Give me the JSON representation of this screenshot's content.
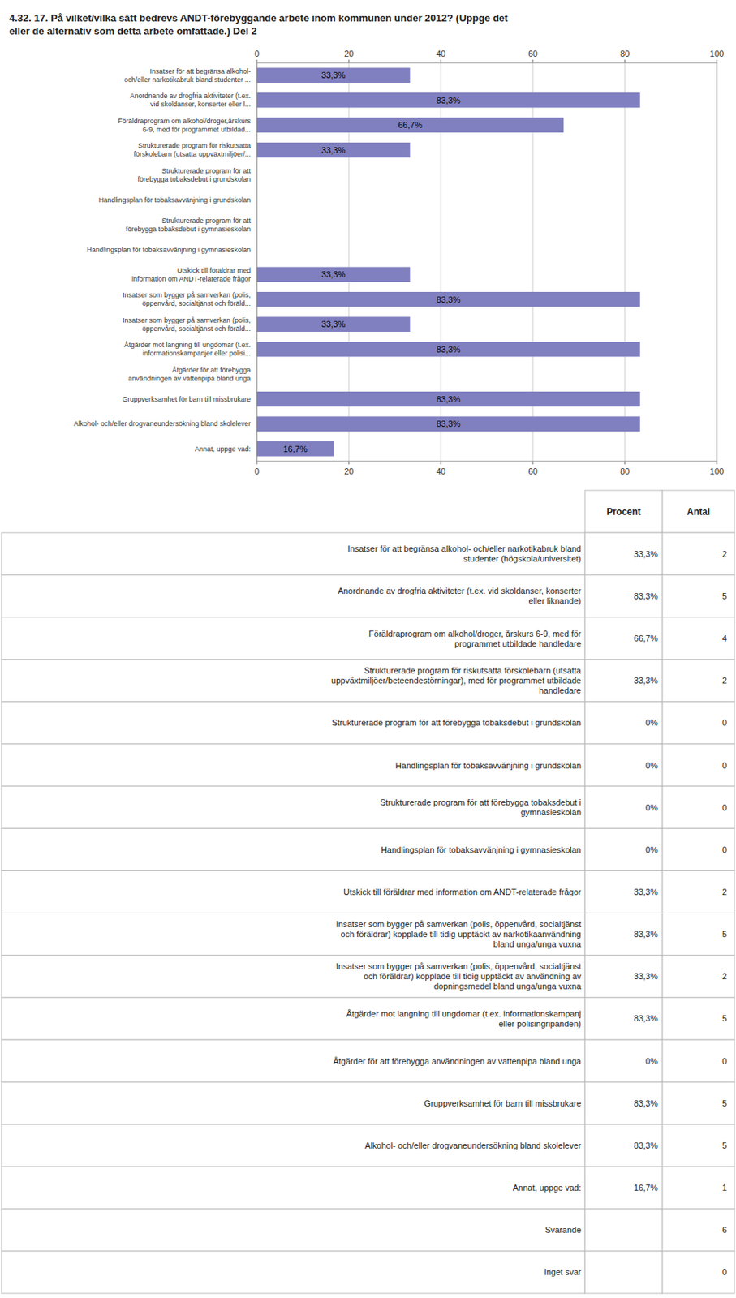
{
  "chart_data": {
    "type": "bar",
    "orientation": "horizontal",
    "title": "4.32. 17. På vilket/vilka sätt bedrevs ANDT-förebyggande arbete inom kommunen under 2012? (Uppge det\neller de alternativ som detta arbete omfattade.) Del 2",
    "categories": [
      "Insatser för att begränsa alkohol-\noch/eller narkotikabruk bland studenter ...",
      "Anordnande av drogfria aktiviteter (t.ex.\nvid skoldanser, konserter eller l...",
      "Föräldraprogram om alkohol/droger,årskurs\n6-9, med för programmet utbildad...",
      "Strukturerade program för riskutsatta\nförskolebarn (utsatta uppväxtmiljöer/...",
      "Strukturerade program för att\nförebygga tobaksdebut i grundskolan",
      "Handlingsplan för tobaksavvänjning i grundskolan",
      "Strukturerade program för att\nförebygga tobaksdebut i gymnasieskolan",
      "Handlingsplan för tobaksavvänjning i gymnasieskolan",
      "Utskick till föräldrar med\ninformation om ANDT-relaterade frågor",
      "Insatser som bygger på samverkan (polis,\nöppenvård, socialtjänst och föräld...",
      "Insatser som bygger på samverkan (polis,\nöppenvård, socialtjänst och föräld...",
      "Åtgärder mot langning till ungdomar (t.ex.\ninformationskampanjer eller polisi...",
      "Åtgärder för att förebygga\nanvändningen av vattenpipa bland unga",
      "Gruppverksamhet för barn till missbrukare",
      "Alkohol- och/eller drogvaneundersökning bland skolelever",
      "Annat, uppge vad:"
    ],
    "values": [
      33.3,
      83.3,
      66.7,
      33.3,
      0.0,
      0.0,
      0.0,
      0.0,
      33.3,
      83.3,
      33.3,
      83.3,
      0.0,
      83.3,
      83.3,
      16.7
    ],
    "value_labels": [
      "33,3%",
      "83,3%",
      "66,7%",
      "33,3%",
      null,
      null,
      null,
      null,
      "33,3%",
      "83,3%",
      "33,3%",
      "83,3%",
      null,
      "83,3%",
      "83,3%",
      "16,7%"
    ],
    "data_labels": true,
    "color": "#8080c0",
    "xlim": [
      0,
      100
    ],
    "xticks": [
      0,
      20,
      40,
      60,
      80,
      100
    ],
    "grid": true,
    "table": {
      "headers": [
        "Procent",
        "Antal"
      ],
      "rows": [
        {
          "label": "Insatser för att begränsa alkohol- och/eller narkotikabruk bland\nstudenter (högskola/universitet)",
          "percent": 33.3,
          "percent_label": "33,3%",
          "count": 2
        },
        {
          "label": "Anordnande av drogfria aktiviteter (t.ex. vid skoldanser, konserter\neller liknande)",
          "percent": 83.3,
          "percent_label": "83,3%",
          "count": 5
        },
        {
          "label": "Föräldraprogram om alkohol/droger, årskurs 6-9, med för\nprogrammet utbildade handledare",
          "percent": 66.7,
          "percent_label": "66,7%",
          "count": 4
        },
        {
          "label": "Strukturerade program för riskutsatta förskolebarn (utsatta\nuppväxtmiljöer/beteendestörningar), med för programmet utbildade\nhandledare",
          "percent": 33.3,
          "percent_label": "33,3%",
          "count": 2
        },
        {
          "label": "Strukturerade program för att förebygga tobaksdebut i grundskolan",
          "percent": 0,
          "percent_label": "0%",
          "count": 0
        },
        {
          "label": "Handlingsplan för tobaksavvänjning i grundskolan",
          "percent": 0,
          "percent_label": "0%",
          "count": 0
        },
        {
          "label": "Strukturerade program för att förebygga tobaksdebut i\ngymnasieskolan",
          "percent": 0,
          "percent_label": "0%",
          "count": 0
        },
        {
          "label": "Handlingsplan för tobaksavvänjning i gymnasieskolan",
          "percent": 0,
          "percent_label": "0%",
          "count": 0
        },
        {
          "label": "Utskick till föräldrar med information om ANDT-relaterade frågor",
          "percent": 33.3,
          "percent_label": "33,3%",
          "count": 2
        },
        {
          "label": "Insatser som bygger på samverkan (polis, öppenvård, socialtjänst\noch föräldrar) kopplade till tidig upptäckt av narkotikaanvändning\nbland unga/unga vuxna",
          "percent": 83.3,
          "percent_label": "83,3%",
          "count": 5
        },
        {
          "label": "Insatser som bygger på samverkan (polis, öppenvård, socialtjänst\noch föräldrar) kopplade till tidig upptäckt av användning av\ndopningsmedel bland unga/unga vuxna",
          "percent": 33.3,
          "percent_label": "33,3%",
          "count": 2
        },
        {
          "label": "Åtgärder mot langning till ungdomar (t.ex. informationskampanj\neller polisingripanden)",
          "percent": 83.3,
          "percent_label": "83,3%",
          "count": 5
        },
        {
          "label": "Åtgärder för att förebygga användningen av vattenpipa bland unga",
          "percent": 0,
          "percent_label": "0%",
          "count": 0
        },
        {
          "label": "Gruppverksamhet för barn till missbrukare",
          "percent": 83.3,
          "percent_label": "83,3%",
          "count": 5
        },
        {
          "label": "Alkohol- och/eller drogvaneundersökning bland skolelever",
          "percent": 83.3,
          "percent_label": "83,3%",
          "count": 5
        },
        {
          "label": "Annat, uppge vad:",
          "percent": 16.7,
          "percent_label": "16,7%",
          "count": 1
        },
        {
          "label": "Svarande",
          "percent": null,
          "percent_label": null,
          "count": 6
        },
        {
          "label": "Inget svar",
          "percent": null,
          "percent_label": null,
          "count": 0
        }
      ]
    }
  }
}
